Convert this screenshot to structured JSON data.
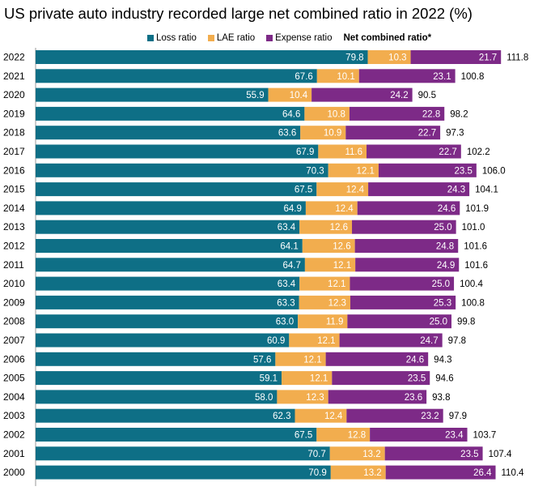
{
  "chart_data": {
    "type": "bar",
    "orientation": "horizontal",
    "stacked": true,
    "title": "US private auto industry recorded large net combined ratio in 2022 (%)",
    "categories": [
      "2022",
      "2021",
      "2020",
      "2019",
      "2018",
      "2017",
      "2016",
      "2015",
      "2014",
      "2013",
      "2012",
      "2011",
      "2010",
      "2009",
      "2008",
      "2007",
      "2006",
      "2005",
      "2004",
      "2003",
      "2002",
      "2001",
      "2000"
    ],
    "series": [
      {
        "name": "Loss ratio",
        "color": "#0e6f86",
        "values": [
          79.8,
          67.6,
          55.9,
          64.6,
          63.6,
          67.9,
          70.3,
          67.5,
          64.9,
          63.4,
          64.1,
          64.7,
          63.4,
          63.3,
          63.0,
          60.9,
          57.6,
          59.1,
          58.0,
          62.3,
          67.5,
          70.7,
          70.9
        ]
      },
      {
        "name": "LAE ratio",
        "color": "#f2ad4e",
        "values": [
          10.3,
          10.1,
          10.4,
          10.8,
          10.9,
          11.6,
          12.1,
          12.4,
          12.4,
          12.6,
          12.6,
          12.1,
          12.1,
          12.3,
          11.9,
          12.1,
          12.1,
          12.1,
          12.3,
          12.4,
          12.8,
          13.2,
          13.2
        ]
      },
      {
        "name": "Expense ratio",
        "color": "#7d2a87",
        "values": [
          21.7,
          23.1,
          24.2,
          22.8,
          22.7,
          22.7,
          23.5,
          24.3,
          24.6,
          25.0,
          24.8,
          24.9,
          25.0,
          25.3,
          25.0,
          24.7,
          24.6,
          23.5,
          23.6,
          23.2,
          23.4,
          23.5,
          26.4
        ]
      }
    ],
    "net_combined_label": "Net combined ratio*",
    "net_combined": [
      111.8,
      100.8,
      90.5,
      98.2,
      97.3,
      102.2,
      106.0,
      104.1,
      101.9,
      101.0,
      101.6,
      101.6,
      100.4,
      100.8,
      99.8,
      97.8,
      94.3,
      94.6,
      93.8,
      97.9,
      103.7,
      107.4,
      110.4
    ],
    "xlim": [
      0,
      120
    ],
    "xlabel": "",
    "ylabel": "",
    "grid": false,
    "legend": "top"
  }
}
